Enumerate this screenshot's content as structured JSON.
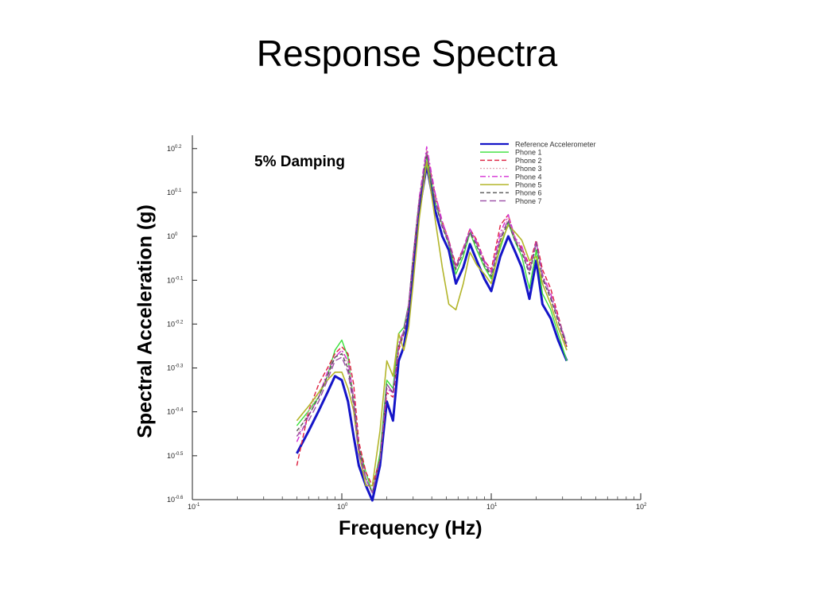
{
  "slide": {
    "title": "Response Spectra"
  },
  "chart_data": {
    "type": "line",
    "title": "",
    "annotation": "5% Damping",
    "xlabel": "Frequency (Hz)",
    "ylabel": "Spectral Acceleration (g)",
    "xscale": "log",
    "yscale": "log",
    "xlim": [
      0.1,
      100
    ],
    "ylim": [
      0.251,
      1.7
    ],
    "xticks": [
      {
        "value": 0.1,
        "base": "10",
        "exp": "-1"
      },
      {
        "value": 1,
        "base": "10",
        "exp": "0"
      },
      {
        "value": 10,
        "base": "10",
        "exp": "1"
      },
      {
        "value": 100,
        "base": "10",
        "exp": "2"
      }
    ],
    "yticks": [
      {
        "value": 0.251,
        "base": "10",
        "exp": "-0.6"
      },
      {
        "value": 0.316,
        "base": "10",
        "exp": "-0.5"
      },
      {
        "value": 0.398,
        "base": "10",
        "exp": "-0.4"
      },
      {
        "value": 0.501,
        "base": "10",
        "exp": "-0.3"
      },
      {
        "value": 0.631,
        "base": "10",
        "exp": "-0.2"
      },
      {
        "value": 0.794,
        "base": "10",
        "exp": "-0.1"
      },
      {
        "value": 1.0,
        "base": "10",
        "exp": "0"
      },
      {
        "value": 1.259,
        "base": "10",
        "exp": "0.1"
      },
      {
        "value": 1.585,
        "base": "10",
        "exp": "0.2"
      }
    ],
    "grid": false,
    "legend_position": "top-right",
    "x": [
      0.5,
      0.6,
      0.7,
      0.8,
      0.9,
      1.0,
      1.1,
      1.2,
      1.3,
      1.45,
      1.6,
      1.8,
      2.0,
      2.2,
      2.4,
      2.6,
      2.8,
      3.0,
      3.3,
      3.7,
      4.2,
      4.7,
      5.2,
      5.8,
      6.5,
      7.2,
      8.0,
      9.0,
      10.0,
      11.5,
      13.0,
      14.5,
      16.0,
      18.0,
      20.0,
      22.0,
      25.0,
      28.0,
      32.0
    ],
    "series": [
      {
        "name": "Reference Accelerometer",
        "color": "#1515c8",
        "dash": "",
        "width": 3,
        "values": [
          0.32,
          0.36,
          0.4,
          0.44,
          0.48,
          0.47,
          0.42,
          0.35,
          0.3,
          0.27,
          0.25,
          0.3,
          0.42,
          0.38,
          0.52,
          0.56,
          0.66,
          0.82,
          1.15,
          1.45,
          1.15,
          1.0,
          0.93,
          0.78,
          0.85,
          0.96,
          0.88,
          0.8,
          0.75,
          0.9,
          1.0,
          0.92,
          0.85,
          0.72,
          0.88,
          0.7,
          0.65,
          0.58,
          0.52
        ]
      },
      {
        "name": "Phone 1",
        "color": "#3ae03a",
        "dash": "",
        "width": 1.4,
        "values": [
          0.37,
          0.4,
          0.43,
          0.48,
          0.55,
          0.58,
          0.53,
          0.42,
          0.33,
          0.29,
          0.26,
          0.32,
          0.47,
          0.45,
          0.6,
          0.62,
          0.7,
          0.9,
          1.22,
          1.52,
          1.2,
          1.06,
          0.96,
          0.82,
          0.9,
          1.02,
          0.93,
          0.85,
          0.8,
          0.94,
          1.07,
          0.97,
          0.9,
          0.76,
          0.93,
          0.74,
          0.68,
          0.6,
          0.52
        ]
      },
      {
        "name": "Phone 2",
        "color": "#dd1f3f",
        "dash": "6,3",
        "width": 1.4,
        "values": [
          0.3,
          0.4,
          0.46,
          0.5,
          0.54,
          0.56,
          0.54,
          0.46,
          0.34,
          0.29,
          0.27,
          0.31,
          0.44,
          0.43,
          0.55,
          0.6,
          0.69,
          0.88,
          1.2,
          1.56,
          1.25,
          1.08,
          0.98,
          0.86,
          0.94,
          1.04,
          0.98,
          0.88,
          0.84,
          1.06,
          1.12,
          0.98,
          0.94,
          0.86,
          0.98,
          0.84,
          0.76,
          0.66,
          0.56
        ]
      },
      {
        "name": "Phone 3",
        "color": "#e0a7b0",
        "dash": "2,2",
        "width": 1.3,
        "values": [
          0.35,
          0.4,
          0.44,
          0.48,
          0.53,
          0.55,
          0.51,
          0.42,
          0.33,
          0.28,
          0.26,
          0.31,
          0.45,
          0.44,
          0.56,
          0.61,
          0.69,
          0.89,
          1.22,
          1.58,
          1.24,
          1.07,
          0.97,
          0.84,
          0.93,
          1.03,
          0.96,
          0.87,
          0.82,
          1.0,
          1.1,
          0.98,
          0.93,
          0.83,
          0.96,
          0.81,
          0.73,
          0.64,
          0.55
        ]
      },
      {
        "name": "Phone 4",
        "color": "#d42fd4",
        "dash": "7,3,2,3",
        "width": 1.4,
        "values": [
          0.34,
          0.39,
          0.43,
          0.49,
          0.53,
          0.55,
          0.52,
          0.43,
          0.33,
          0.28,
          0.26,
          0.31,
          0.45,
          0.44,
          0.57,
          0.61,
          0.7,
          0.9,
          1.23,
          1.6,
          1.26,
          1.08,
          0.98,
          0.85,
          0.94,
          1.04,
          0.97,
          0.88,
          0.83,
          1.02,
          1.12,
          0.99,
          0.95,
          0.84,
          0.97,
          0.82,
          0.74,
          0.65,
          0.56
        ]
      },
      {
        "name": "Phone 5",
        "color": "#b3b52a",
        "dash": "",
        "width": 1.6,
        "values": [
          0.38,
          0.41,
          0.44,
          0.47,
          0.49,
          0.49,
          0.45,
          0.4,
          0.32,
          0.27,
          0.27,
          0.36,
          0.52,
          0.48,
          0.6,
          0.55,
          0.62,
          0.78,
          1.1,
          1.48,
          1.1,
          0.85,
          0.7,
          0.68,
          0.78,
          0.92,
          0.86,
          0.82,
          0.78,
          0.96,
          1.06,
          1.02,
          0.98,
          0.88,
          0.9,
          0.78,
          0.7,
          0.62,
          0.55
        ]
      },
      {
        "name": "Phone 6",
        "color": "#555555",
        "dash": "5,3",
        "width": 1.4,
        "values": [
          0.36,
          0.39,
          0.43,
          0.48,
          0.53,
          0.54,
          0.5,
          0.42,
          0.33,
          0.28,
          0.26,
          0.31,
          0.46,
          0.44,
          0.56,
          0.6,
          0.69,
          0.89,
          1.2,
          1.54,
          1.2,
          1.05,
          0.96,
          0.84,
          0.92,
          1.02,
          0.95,
          0.86,
          0.81,
          0.98,
          1.08,
          0.97,
          0.92,
          0.82,
          0.96,
          0.8,
          0.72,
          0.64,
          0.56
        ]
      },
      {
        "name": "Phone 7",
        "color": "#9a4da6",
        "dash": "8,4",
        "width": 1.4,
        "values": [
          0.35,
          0.38,
          0.42,
          0.47,
          0.52,
          0.53,
          0.49,
          0.41,
          0.32,
          0.28,
          0.26,
          0.31,
          0.46,
          0.44,
          0.56,
          0.61,
          0.7,
          0.9,
          1.21,
          1.55,
          1.22,
          1.06,
          0.97,
          0.85,
          0.93,
          1.03,
          0.96,
          0.87,
          0.82,
          0.99,
          1.09,
          0.98,
          0.93,
          0.83,
          0.97,
          0.81,
          0.73,
          0.65,
          0.57
        ]
      }
    ]
  }
}
